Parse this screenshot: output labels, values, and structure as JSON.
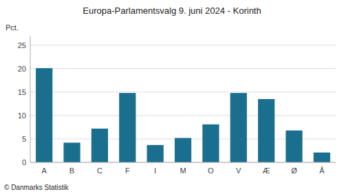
{
  "chart_data": {
    "type": "bar",
    "title": "Europa-Parlamentsvalg 9. juni 2024 - Korinth",
    "ylabel": "Pct.",
    "footer": "© Danmarks Statistik",
    "categories": [
      "A",
      "B",
      "C",
      "F",
      "I",
      "M",
      "O",
      "V",
      "Æ",
      "Ø",
      "Å"
    ],
    "values": [
      20.1,
      4.2,
      7.2,
      14.8,
      3.7,
      5.2,
      8.1,
      14.8,
      13.5,
      6.8,
      2.1
    ],
    "color": "#1a6e8e",
    "ylim": [
      0,
      27
    ],
    "yticks": [
      0,
      5,
      10,
      15,
      20,
      25
    ],
    "grid": true
  }
}
